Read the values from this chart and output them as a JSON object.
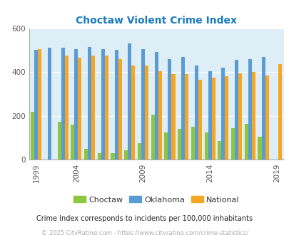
{
  "title": "Choctaw Violent Crime Index",
  "title_color": "#1a7abf",
  "subtitle": "Crime Index corresponds to incidents per 100,000 inhabitants",
  "footer": "© 2025 CityRating.com - https://www.cityrating.com/crime-statistics/",
  "years": [
    1999,
    2000,
    2003,
    2004,
    2005,
    2006,
    2007,
    2008,
    2009,
    2010,
    2011,
    2012,
    2013,
    2014,
    2015,
    2016,
    2017,
    2018,
    2019
  ],
  "choctaw": [
    220,
    0,
    175,
    160,
    50,
    30,
    30,
    45,
    75,
    205,
    125,
    140,
    150,
    125,
    85,
    145,
    165,
    105,
    0
  ],
  "oklahoma": [
    500,
    510,
    510,
    505,
    515,
    505,
    500,
    530,
    505,
    490,
    460,
    470,
    430,
    405,
    420,
    455,
    460,
    470,
    0
  ],
  "national": [
    505,
    0,
    475,
    465,
    475,
    475,
    460,
    430,
    430,
    405,
    390,
    390,
    365,
    375,
    380,
    395,
    400,
    385,
    435
  ],
  "show": [
    1,
    1,
    1,
    1,
    1,
    1,
    1,
    1,
    1,
    1,
    1,
    1,
    1,
    1,
    1,
    1,
    1,
    1,
    1
  ],
  "xtick_years": [
    1999,
    2004,
    2009,
    2014,
    2019
  ],
  "bar_colors": {
    "choctaw": "#8dc63f",
    "oklahoma": "#5b9bd5",
    "national": "#f5a623"
  },
  "plot_bg": "#ddeef6",
  "ylim": [
    0,
    600
  ],
  "yticks": [
    0,
    200,
    400,
    600
  ],
  "figsize": [
    4.06,
    3.3
  ],
  "dpi": 100
}
